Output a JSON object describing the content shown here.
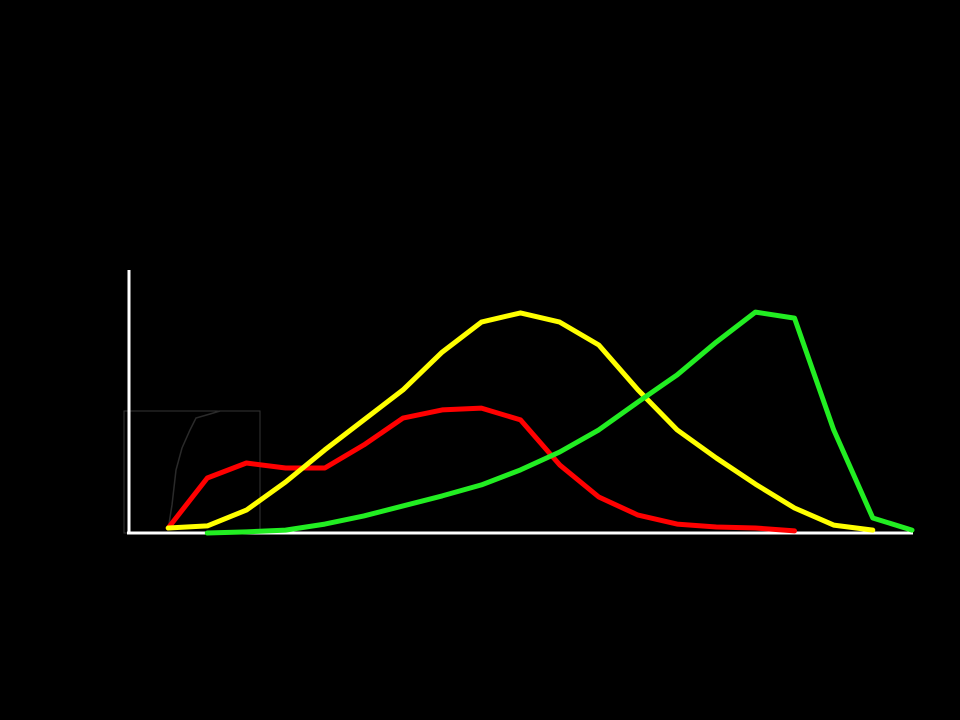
{
  "chart_data": {
    "type": "line",
    "x": [
      0,
      5,
      10,
      15,
      20,
      25,
      30,
      35,
      40,
      45,
      50,
      55,
      60,
      65,
      70,
      75,
      80,
      85,
      90,
      95,
      100
    ],
    "xlim": [
      0,
      100
    ],
    "ylim": [
      0,
      100
    ],
    "series": [
      {
        "color": "#ff0000",
        "values": [
          null,
          1.9,
          20.9,
          26.6,
          24.7,
          24.7,
          33.5,
          43.7,
          46.8,
          47.5,
          43.0,
          25.9,
          13.7,
          6.8,
          3.4,
          2.3,
          1.9,
          0.8,
          null,
          null,
          null
        ]
      },
      {
        "color": "#ffff00",
        "values": [
          null,
          1.9,
          2.7,
          8.7,
          19.4,
          31.6,
          43.0,
          54.4,
          68.8,
          80.2,
          83.7,
          80.2,
          71.5,
          54.4,
          39.2,
          28.5,
          18.6,
          9.5,
          3.0,
          1.1,
          null
        ]
      },
      {
        "color": "#22ee22",
        "values": [
          null,
          null,
          0,
          0.4,
          1.1,
          3.4,
          6.5,
          10.3,
          14.1,
          18.3,
          24.0,
          30.8,
          39.2,
          49.8,
          60.1,
          72.6,
          84.0,
          81.7,
          39.2,
          5.7,
          1.1
        ]
      }
    ]
  }
}
